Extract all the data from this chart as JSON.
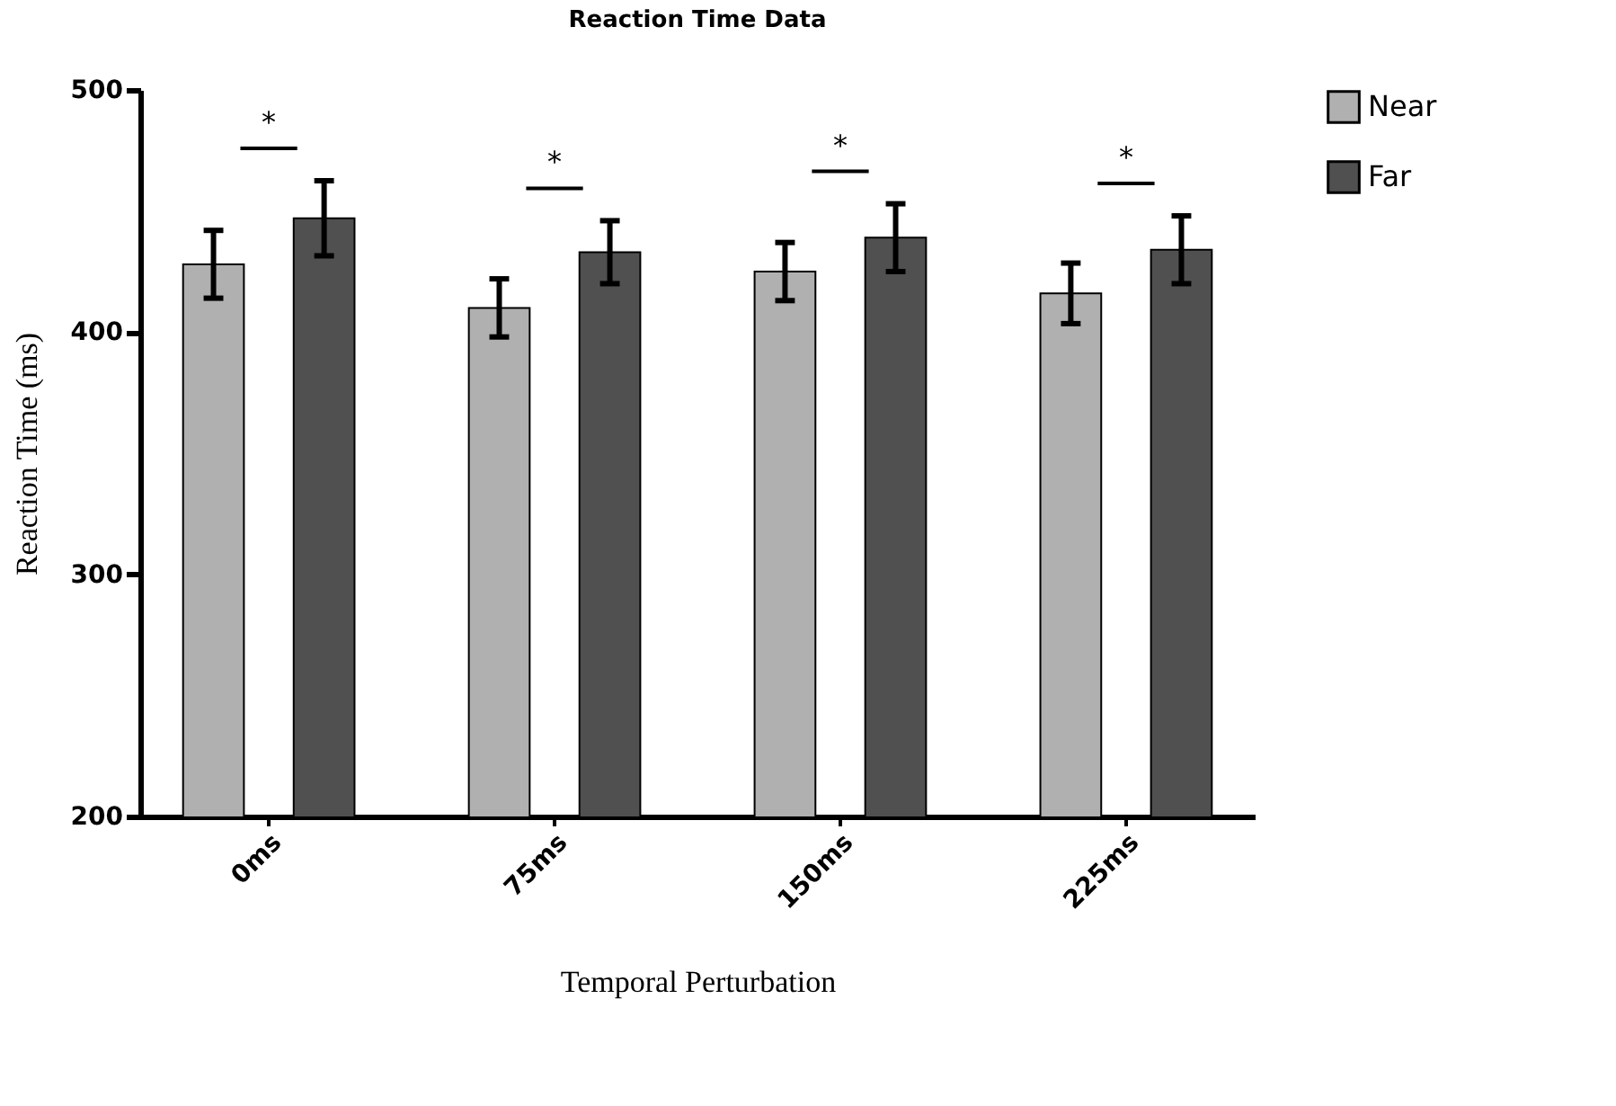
{
  "chart_data": {
    "type": "bar",
    "title": "Reaction Time Data",
    "xlabel": "Temporal Perturbation",
    "ylabel": "Reaction Time (ms)",
    "categories": [
      "0ms",
      "75ms",
      "150ms",
      "225ms"
    ],
    "series": [
      {
        "name": "Near",
        "color": "#b0b0b0",
        "values": [
          428,
          410,
          425,
          416
        ],
        "errors": [
          14,
          12,
          12,
          12.5
        ]
      },
      {
        "name": "Far",
        "color": "#505050",
        "values": [
          447,
          433,
          439,
          434
        ],
        "errors": [
          15.5,
          13,
          14,
          14
        ]
      }
    ],
    "ylim": [
      200,
      500
    ],
    "yticks": [
      200,
      300,
      400,
      500
    ],
    "grid": false,
    "legend": "top right",
    "annotations": [
      "*",
      "*",
      "*",
      "*"
    ]
  }
}
